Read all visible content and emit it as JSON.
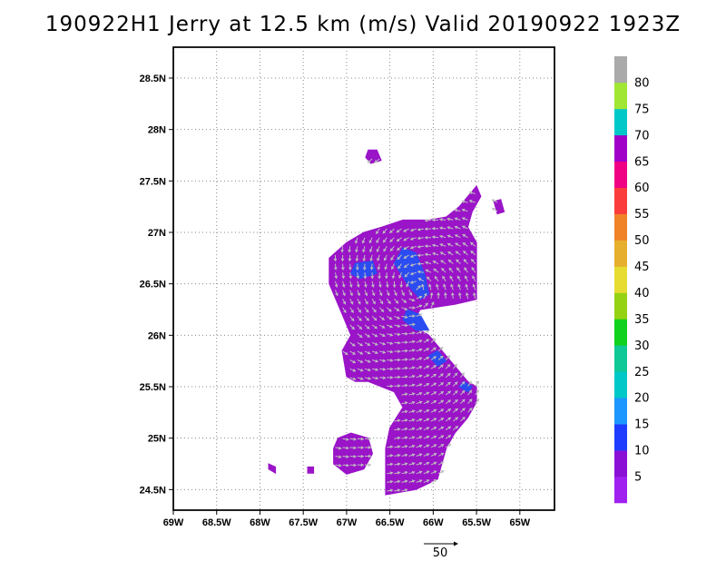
{
  "title": "190922H1 Jerry at 12.5 km (m/s) Valid 20190922 1923Z",
  "map": {
    "lon_range": [
      -69,
      -64.6
    ],
    "lat_range": [
      24.3,
      28.8
    ],
    "x_ticks": [
      {
        "value": -69,
        "label": "69W"
      },
      {
        "value": -68.5,
        "label": "68.5W"
      },
      {
        "value": -68,
        "label": "68W"
      },
      {
        "value": -67.5,
        "label": "67.5W"
      },
      {
        "value": -67,
        "label": "67W"
      },
      {
        "value": -66.5,
        "label": "66.5W"
      },
      {
        "value": -66,
        "label": "66W"
      },
      {
        "value": -65.5,
        "label": "65.5W"
      },
      {
        "value": -65,
        "label": "65W"
      }
    ],
    "y_ticks": [
      {
        "value": 24.5,
        "label": "24.5N"
      },
      {
        "value": 25,
        "label": "25N"
      },
      {
        "value": 25.5,
        "label": "25.5N"
      },
      {
        "value": 26,
        "label": "26N"
      },
      {
        "value": 26.5,
        "label": "26.5N"
      },
      {
        "value": 27,
        "label": "27N"
      },
      {
        "value": 27.5,
        "label": "27.5N"
      },
      {
        "value": 28,
        "label": "28N"
      },
      {
        "value": 28.5,
        "label": "28.5N"
      }
    ],
    "grid": "dotted",
    "colors": {
      "main_fill": "#9a14c8",
      "high_fill": "#2a4cf0",
      "arrow": "#bdbdbd"
    },
    "regions": [
      {
        "name": "main",
        "level": "5",
        "polygon": [
          [
            -67.2,
            26.75
          ],
          [
            -67.0,
            26.9
          ],
          [
            -66.8,
            27.0
          ],
          [
            -66.6,
            27.05
          ],
          [
            -66.35,
            27.12
          ],
          [
            -66.05,
            27.12
          ],
          [
            -65.85,
            27.15
          ],
          [
            -65.7,
            27.25
          ],
          [
            -65.6,
            27.35
          ],
          [
            -65.5,
            27.45
          ],
          [
            -65.45,
            27.35
          ],
          [
            -65.55,
            27.2
          ],
          [
            -65.6,
            27.05
          ],
          [
            -65.5,
            26.9
          ],
          [
            -65.5,
            26.65
          ],
          [
            -65.5,
            26.35
          ],
          [
            -65.75,
            26.3
          ],
          [
            -66.15,
            26.25
          ],
          [
            -66.25,
            26.1
          ],
          [
            -66.05,
            26.0
          ],
          [
            -65.85,
            25.8
          ],
          [
            -65.7,
            25.65
          ],
          [
            -65.6,
            25.55
          ],
          [
            -65.5,
            25.5
          ],
          [
            -65.5,
            25.35
          ],
          [
            -65.6,
            25.2
          ],
          [
            -65.75,
            25.05
          ],
          [
            -65.85,
            24.9
          ],
          [
            -65.9,
            24.75
          ],
          [
            -65.95,
            24.6
          ],
          [
            -66.2,
            24.5
          ],
          [
            -66.55,
            24.45
          ],
          [
            -66.55,
            24.7
          ],
          [
            -66.55,
            24.9
          ],
          [
            -66.5,
            25.1
          ],
          [
            -66.35,
            25.3
          ],
          [
            -66.45,
            25.45
          ],
          [
            -66.75,
            25.55
          ],
          [
            -66.9,
            25.55
          ],
          [
            -67.0,
            25.6
          ],
          [
            -67.05,
            25.85
          ],
          [
            -66.95,
            26.0
          ],
          [
            -67.1,
            26.3
          ],
          [
            -67.2,
            26.5
          ]
        ]
      },
      {
        "name": "island-sw",
        "level": "5",
        "polygon": [
          [
            -67.1,
            25.0
          ],
          [
            -66.95,
            25.05
          ],
          [
            -66.75,
            25.0
          ],
          [
            -66.7,
            24.85
          ],
          [
            -66.8,
            24.7
          ],
          [
            -67.0,
            24.65
          ],
          [
            -67.15,
            24.75
          ],
          [
            -67.15,
            24.9
          ]
        ]
      },
      {
        "name": "speck-w",
        "level": "5",
        "polygon": [
          [
            -67.9,
            24.75
          ],
          [
            -67.82,
            24.72
          ],
          [
            -67.82,
            24.66
          ],
          [
            -67.9,
            24.7
          ]
        ]
      },
      {
        "name": "speck-north",
        "level": "5",
        "polygon": [
          [
            -66.75,
            27.8
          ],
          [
            -66.65,
            27.8
          ],
          [
            -66.6,
            27.7
          ],
          [
            -66.72,
            27.67
          ],
          [
            -66.78,
            27.73
          ]
        ]
      },
      {
        "name": "speck-e",
        "level": "5",
        "polygon": [
          [
            -65.3,
            27.3
          ],
          [
            -65.22,
            27.32
          ],
          [
            -65.18,
            27.2
          ],
          [
            -65.26,
            27.18
          ]
        ]
      },
      {
        "name": "speck-s",
        "level": "5",
        "polygon": [
          [
            -67.45,
            24.72
          ],
          [
            -67.38,
            24.72
          ],
          [
            -67.38,
            24.66
          ],
          [
            -67.45,
            24.66
          ]
        ]
      }
    ],
    "high_regions": [
      {
        "level": "10",
        "polygon": [
          [
            -66.35,
            26.85
          ],
          [
            -66.2,
            26.8
          ],
          [
            -66.1,
            26.6
          ],
          [
            -66.05,
            26.4
          ],
          [
            -66.15,
            26.35
          ],
          [
            -66.3,
            26.5
          ],
          [
            -66.45,
            26.7
          ]
        ]
      },
      {
        "level": "10",
        "polygon": [
          [
            -66.9,
            26.7
          ],
          [
            -66.7,
            26.72
          ],
          [
            -66.65,
            26.6
          ],
          [
            -66.85,
            26.55
          ],
          [
            -66.95,
            26.6
          ]
        ]
      },
      {
        "level": "10",
        "polygon": [
          [
            -66.3,
            26.25
          ],
          [
            -66.15,
            26.2
          ],
          [
            -66.05,
            26.05
          ],
          [
            -66.2,
            26.05
          ],
          [
            -66.35,
            26.15
          ]
        ]
      },
      {
        "level": "10",
        "polygon": [
          [
            -65.95,
            25.85
          ],
          [
            -65.85,
            25.75
          ],
          [
            -65.95,
            25.7
          ],
          [
            -66.05,
            25.8
          ]
        ]
      },
      {
        "level": "10",
        "polygon": [
          [
            -65.65,
            25.55
          ],
          [
            -65.55,
            25.5
          ],
          [
            -65.6,
            25.45
          ],
          [
            -65.7,
            25.5
          ]
        ]
      }
    ],
    "reference_vector": {
      "label": "50"
    }
  },
  "colorbar": {
    "segments": [
      {
        "color": "#a020f0"
      },
      {
        "color": "#8a10d6"
      },
      {
        "color": "#1e3cff"
      },
      {
        "color": "#1e96ff"
      },
      {
        "color": "#00c8c8"
      },
      {
        "color": "#10c896"
      },
      {
        "color": "#10d21e"
      },
      {
        "color": "#96d214"
      },
      {
        "color": "#e6dc32"
      },
      {
        "color": "#e6af2d"
      },
      {
        "color": "#f08228"
      },
      {
        "color": "#fa3c3c"
      },
      {
        "color": "#f00082"
      },
      {
        "color": "#a000c8"
      },
      {
        "color": "#00c8c8"
      },
      {
        "color": "#a0e632"
      },
      {
        "color": "#aaaaaa"
      }
    ],
    "labels": [
      "5",
      "10",
      "15",
      "20",
      "25",
      "30",
      "35",
      "40",
      "45",
      "50",
      "55",
      "60",
      "65",
      "70",
      "75",
      "80"
    ]
  }
}
